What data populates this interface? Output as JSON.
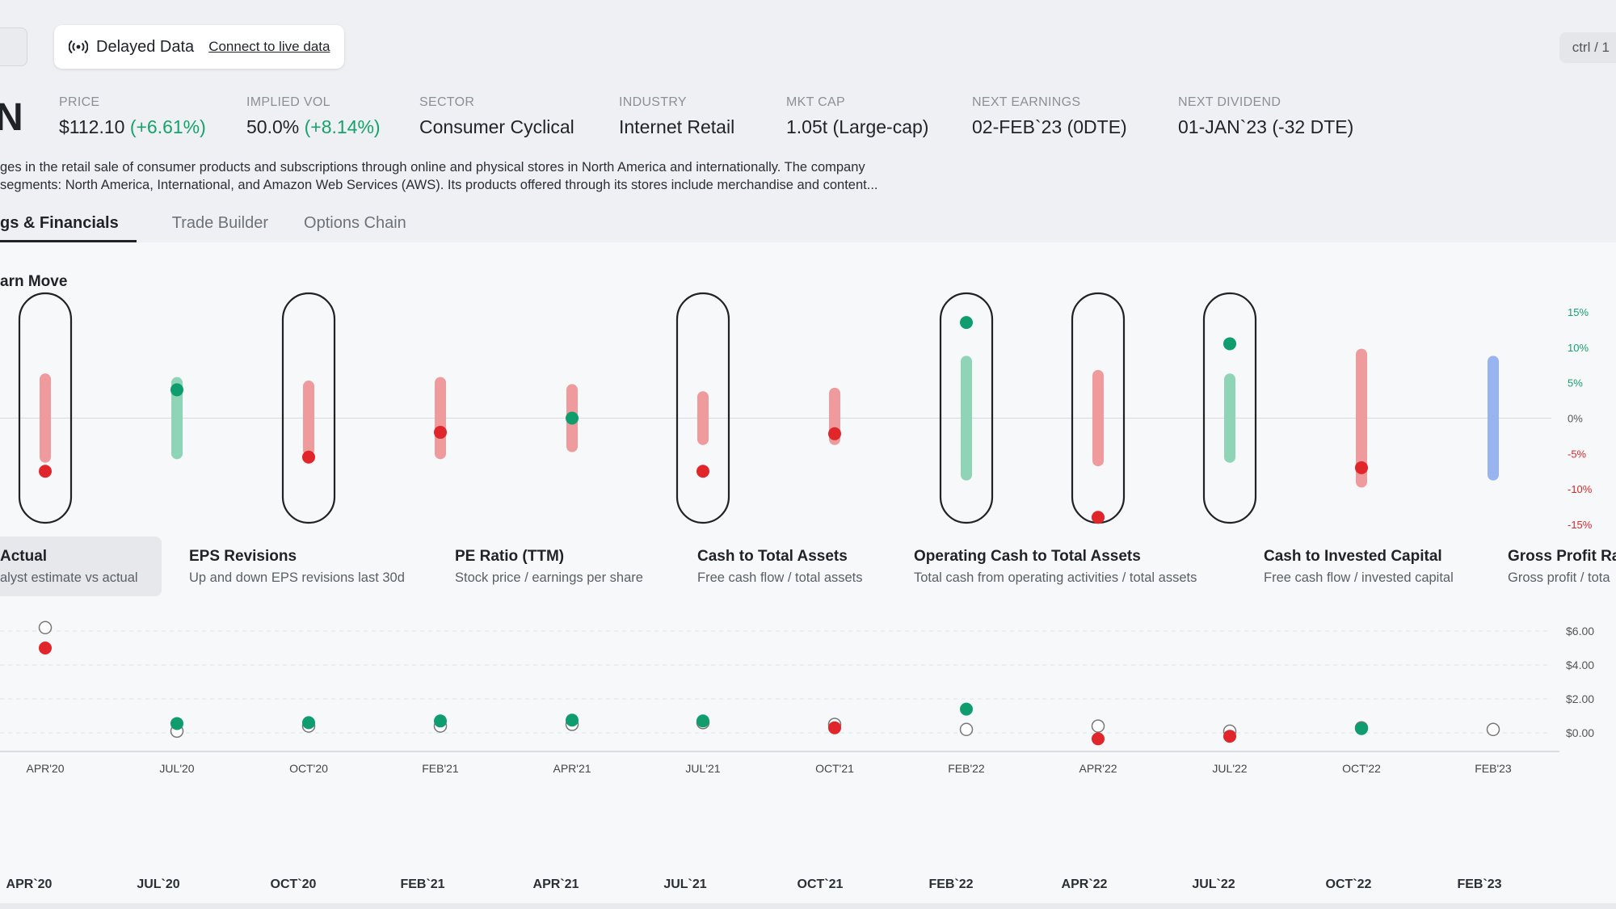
{
  "topbar": {
    "delayed_label": "Delayed Data",
    "connect_link": "Connect to live data",
    "shortcut_hint": "ctrl / 1"
  },
  "ticker_fragment": "N",
  "stats": [
    {
      "label": "PRICE",
      "value": "$112.10",
      "change": "(+6.61%)"
    },
    {
      "label": "IMPLIED VOL",
      "value": "50.0%",
      "change": "(+8.14%)"
    },
    {
      "label": "SECTOR",
      "value": "Consumer Cyclical",
      "change": ""
    },
    {
      "label": "INDUSTRY",
      "value": "Internet Retail",
      "change": ""
    },
    {
      "label": "MKT CAP",
      "value": "1.05t (Large-cap)",
      "change": ""
    },
    {
      "label": "NEXT EARNINGS",
      "value": "02-FEB`23 (0DTE)",
      "change": ""
    },
    {
      "label": "NEXT DIVIDEND",
      "value": "01-JAN`23 (-32 DTE)",
      "change": ""
    }
  ],
  "description": {
    "line1": "ges in the retail sale of consumer products and subscriptions through online and physical stores in North America and internationally. The company",
    "line2": "segments: North America, International, and Amazon Web Services (AWS). Its products offered through its stores include merchandise and content..."
  },
  "tabs": [
    "gs & Financials",
    "Trade Builder",
    "Options Chain"
  ],
  "section_title": "arn Move",
  "metrics": [
    {
      "title": "Actual",
      "subtitle": "alyst estimate vs actual"
    },
    {
      "title": "EPS Revisions",
      "subtitle": "Up and down EPS revisions last 30d"
    },
    {
      "title": "PE Ratio (TTM)",
      "subtitle": "Stock price / earnings per share"
    },
    {
      "title": "Cash to Total Assets",
      "subtitle": "Free cash flow / total assets"
    },
    {
      "title": "Operating Cash to Total Assets",
      "subtitle": "Total cash from operating activities / total assets"
    },
    {
      "title": "Cash to Invested Capital",
      "subtitle": "Free cash flow / invested capital"
    },
    {
      "title": "Gross Profit Ra",
      "subtitle": "Gross profit / tota"
    }
  ],
  "colors": {
    "green": "#0f9d6e",
    "green_bar": "#8fd4b6",
    "red": "#e0262b",
    "red_bar": "#ef9a9c",
    "blue_bar": "#98b4f0",
    "capsule": "#1f2328"
  },
  "chart_data": [
    {
      "type": "scatter",
      "title": "",
      "y_axis_labels": [
        "15%",
        "10%",
        "5%",
        "0%",
        "-5%",
        "-10%",
        "-15%"
      ],
      "ylim": [
        -15,
        15
      ],
      "categories": [
        "APR'20",
        "JUL'20",
        "OCT'20",
        "FEB'21",
        "APR'21",
        "JUL'21",
        "OCT'21",
        "FEB'22",
        "APR'22",
        "JUL'22",
        "OCT'22",
        "FEB'23"
      ],
      "range_low": [
        -5.5,
        -5.0,
        -4.5,
        -5.0,
        -4.0,
        -3.0,
        -3.0,
        -8.0,
        -6.0,
        -5.5,
        -9.0,
        -8.0
      ],
      "range_high": [
        5.5,
        5.0,
        4.5,
        5.0,
        4.0,
        3.0,
        3.5,
        8.0,
        6.0,
        5.5,
        9.0,
        8.0
      ],
      "actual_move": [
        -7.5,
        4.0,
        -5.5,
        -2.0,
        0.0,
        -7.5,
        -2.2,
        13.5,
        -14.0,
        10.5,
        -7.0,
        null
      ],
      "range_color": [
        "red",
        "green",
        "red",
        "red",
        "red",
        "red",
        "red",
        "green",
        "red",
        "green",
        "red",
        "blue"
      ],
      "highlighted": [
        true,
        false,
        true,
        false,
        false,
        true,
        false,
        true,
        true,
        true,
        false,
        false
      ]
    },
    {
      "type": "scatter",
      "title": "",
      "y_axis_labels": [
        "$6.00",
        "$4.00",
        "$2.00",
        "$0.00"
      ],
      "ylim": [
        0,
        6
      ],
      "categories": [
        "APR'20",
        "JUL'20",
        "OCT'20",
        "FEB'21",
        "APR'21",
        "JUL'21",
        "OCT'21",
        "FEB'22",
        "APR'22",
        "JUL'22",
        "OCT'22",
        "FEB'23"
      ],
      "estimate": [
        6.2,
        0.1,
        0.4,
        0.4,
        0.5,
        0.6,
        0.5,
        0.2,
        0.4,
        0.1,
        0.3,
        0.2
      ],
      "actual": [
        5.0,
        0.55,
        0.6,
        0.7,
        0.75,
        0.7,
        0.3,
        1.4,
        -0.35,
        -0.2,
        0.25,
        null
      ],
      "actual_color": [
        "red",
        "green",
        "green",
        "green",
        "green",
        "green",
        "red",
        "green",
        "red",
        "red",
        "green",
        null
      ]
    }
  ],
  "bottom_axis": [
    "APR`20",
    "JUL`20",
    "OCT`20",
    "FEB`21",
    "APR`21",
    "JUL`21",
    "OCT`21",
    "FEB`22",
    "APR`22",
    "JUL`22",
    "OCT`22",
    "FEB`23"
  ]
}
